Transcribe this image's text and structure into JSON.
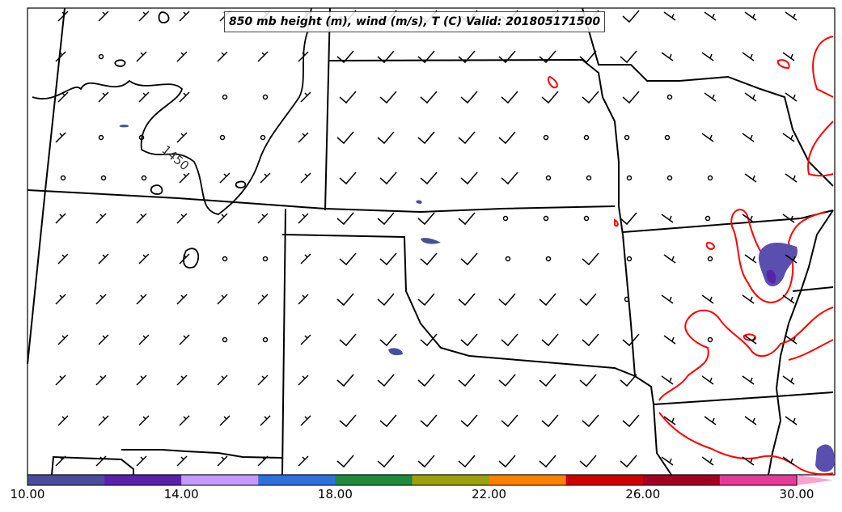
{
  "title": "850 mb height (m), wind (m/s), T (C) Valid: 201805171500",
  "contour_label": "1450",
  "colorbar": {
    "ticks": [
      "10.00",
      "14.00",
      "18.00",
      "22.00",
      "26.00",
      "30.00"
    ],
    "colors": [
      "#4a4e9a",
      "#5a22a8",
      "#c49aff",
      "#2f6fdc",
      "#1f8a3a",
      "#9aa10a",
      "#ff7f00",
      "#d10000",
      "#a30022",
      "#e63a98",
      "#ffa0d0"
    ]
  },
  "colors": {
    "temperature_contour": "#ff0000",
    "height_contour": "#000000",
    "boundary": "#000000"
  }
}
